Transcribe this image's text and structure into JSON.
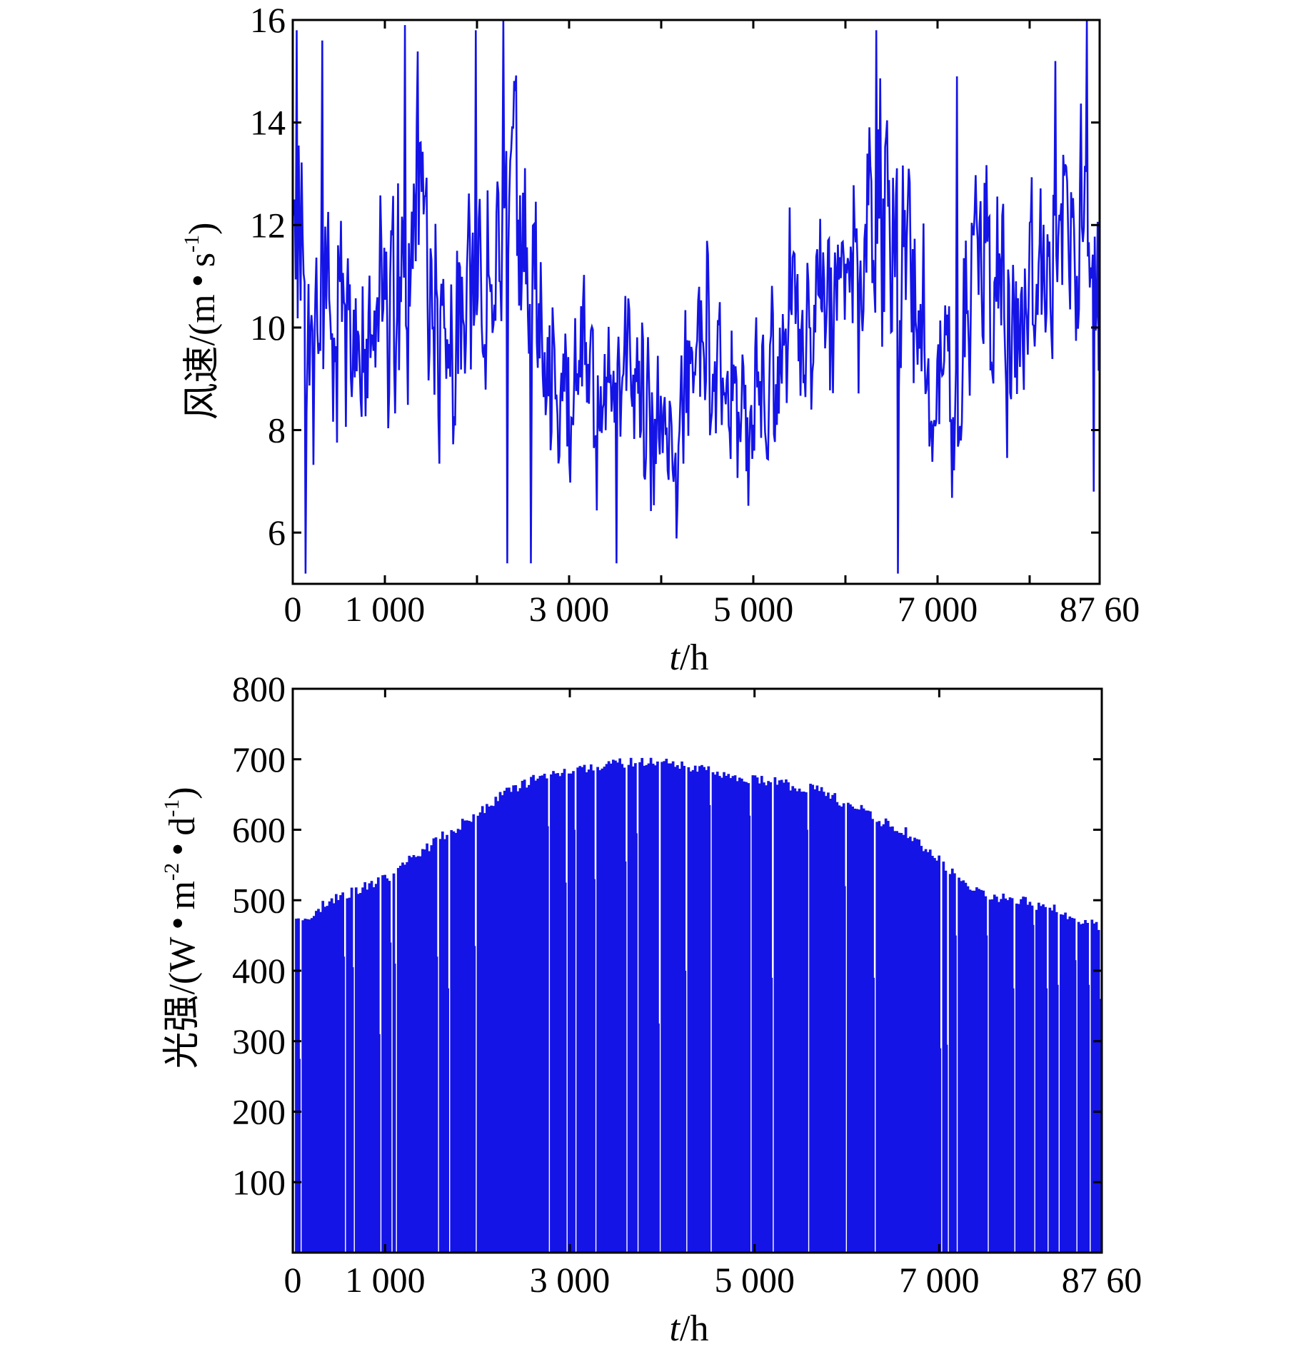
{
  "chart_data": [
    {
      "type": "line",
      "ylabel": "风速/(m·s⁻¹)",
      "ylabel_parts": {
        "quantity": "风速/(m",
        "dot": "•",
        "unit": "s",
        "exp": "-1",
        "close": ")"
      },
      "xlabel": "t/h",
      "xlabel_parts": {
        "var": "t",
        "rest": "/h"
      },
      "xlim": [
        0,
        8760
      ],
      "ylim": [
        5,
        16
      ],
      "xticks": [
        {
          "value": 0,
          "label": "0"
        },
        {
          "value": 1000,
          "label": "1 000"
        },
        {
          "value": 3000,
          "label": "3 000"
        },
        {
          "value": 5000,
          "label": "5 000"
        },
        {
          "value": 7000,
          "label": "7 000"
        },
        {
          "value": 8760,
          "label": "87 60"
        }
      ],
      "xminor": [
        2000,
        4000,
        6000,
        8000
      ],
      "yticks": [
        {
          "value": 6,
          "label": "6"
        },
        {
          "value": 8,
          "label": "8"
        },
        {
          "value": 10,
          "label": "10"
        },
        {
          "value": 12,
          "label": "12"
        },
        {
          "value": 14,
          "label": "14"
        },
        {
          "value": 16,
          "label": "16"
        }
      ],
      "grid": false,
      "color": "#1414e6",
      "series": [
        {
          "x": [
            0,
            200,
            400,
            600,
            800,
            1000,
            1200,
            1400,
            1600,
            1800,
            2000,
            2200,
            2400,
            2600,
            2800,
            3000,
            3200,
            3400,
            3600,
            3800,
            4000,
            4200,
            4400,
            4600,
            4800,
            5000,
            5200,
            5400,
            5600,
            5800,
            6000,
            6200,
            6400,
            6600,
            6800,
            7000,
            7200,
            7400,
            7600,
            7800,
            8000,
            8200,
            8400,
            8600,
            8760
          ],
          "y": [
            12.0,
            9.2,
            10.3,
            10.1,
            9.4,
            10.8,
            11.2,
            12.8,
            10.1,
            9.7,
            11.2,
            10.4,
            13.6,
            10.5,
            8.6,
            8.3,
            8.8,
            8.4,
            8.6,
            8.7,
            8.4,
            8.0,
            10.0,
            9.6,
            8.6,
            8.3,
            8.8,
            10.4,
            9.1,
            10.6,
            10.8,
            10.6,
            12.3,
            11.6,
            10.2,
            8.6,
            8.2,
            11.7,
            10.3,
            10.0,
            10.2,
            10.8,
            11.6,
            12.8,
            9.3
          ],
          "band": [
            3.5,
            2.2,
            2.3,
            2.6,
            2.3,
            2.6,
            2.6,
            2.4,
            2.3,
            2.3,
            2.5,
            2.2,
            2.4,
            2.3,
            2.0,
            1.9,
            1.9,
            1.9,
            1.9,
            2.0,
            2.0,
            2.0,
            2.1,
            2.1,
            2.0,
            2.0,
            2.0,
            2.2,
            2.1,
            2.2,
            2.3,
            2.3,
            2.7,
            2.4,
            2.3,
            2.0,
            2.0,
            2.3,
            2.2,
            2.2,
            2.2,
            2.3,
            2.3,
            2.4,
            2.5
          ]
        }
      ],
      "spikes": [
        {
          "x": 40,
          "y": 15.8
        },
        {
          "x": 140,
          "y": 5.2
        },
        {
          "x": 320,
          "y": 15.6
        },
        {
          "x": 1220,
          "y": 15.9
        },
        {
          "x": 1990,
          "y": 15.8
        },
        {
          "x": 2290,
          "y": 16.0
        },
        {
          "x": 2330,
          "y": 5.4
        },
        {
          "x": 2590,
          "y": 5.4
        },
        {
          "x": 3520,
          "y": 5.4
        },
        {
          "x": 6330,
          "y": 15.8
        },
        {
          "x": 6570,
          "y": 5.2
        },
        {
          "x": 7210,
          "y": 14.9
        },
        {
          "x": 8280,
          "y": 15.2
        },
        {
          "x": 8620,
          "y": 16.0
        },
        {
          "x": 8700,
          "y": 6.8
        }
      ]
    },
    {
      "type": "bar",
      "ylabel": "光强/(W·m⁻²·d⁻¹)",
      "ylabel_parts": {
        "quantity": "光强/(W",
        "dot": "•",
        "unit1": "m",
        "exp1": "-2",
        "unit2": "d",
        "exp2": "-1",
        "close": ")"
      },
      "xlabel": "t/h",
      "xlabel_parts": {
        "var": "t",
        "rest": "/h"
      },
      "xlim": [
        0,
        8760
      ],
      "ylim": [
        0,
        800
      ],
      "xticks": [
        {
          "value": 0,
          "label": "0"
        },
        {
          "value": 1000,
          "label": "1 000"
        },
        {
          "value": 3000,
          "label": "3 000"
        },
        {
          "value": 5000,
          "label": "5 000"
        },
        {
          "value": 7000,
          "label": "7 000"
        },
        {
          "value": 8760,
          "label": "87 60"
        }
      ],
      "yticks": [
        {
          "value": 100,
          "label": "100"
        },
        {
          "value": 200,
          "label": "200"
        },
        {
          "value": 300,
          "label": "300"
        },
        {
          "value": 400,
          "label": "400"
        },
        {
          "value": 500,
          "label": "500"
        },
        {
          "value": 600,
          "label": "600"
        },
        {
          "value": 700,
          "label": "700"
        },
        {
          "value": 800,
          "label": "800"
        }
      ],
      "grid": false,
      "color": "#1414e6",
      "series": [
        {
          "x": [
            0,
            200,
            400,
            600,
            800,
            1000,
            1200,
            1400,
            1600,
            1800,
            2000,
            2200,
            2400,
            2600,
            2800,
            3000,
            3200,
            3400,
            3600,
            3800,
            4000,
            4200,
            4400,
            4600,
            4800,
            5000,
            5200,
            5400,
            5600,
            5800,
            6000,
            6200,
            6400,
            6600,
            6800,
            7000,
            7200,
            7400,
            7600,
            7800,
            8000,
            8200,
            8400,
            8600,
            8760
          ],
          "y": [
            470,
            480,
            500,
            510,
            520,
            530,
            550,
            570,
            590,
            605,
            620,
            645,
            660,
            670,
            675,
            685,
            690,
            692,
            694,
            695,
            694,
            690,
            685,
            680,
            675,
            670,
            668,
            662,
            658,
            650,
            635,
            625,
            610,
            600,
            580,
            555,
            530,
            515,
            505,
            500,
            495,
            488,
            480,
            470,
            460
          ]
        }
      ],
      "dips": [
        {
          "x": 20,
          "y": 400
        },
        {
          "x": 90,
          "y": 275
        },
        {
          "x": 560,
          "y": 420
        },
        {
          "x": 650,
          "y": 405
        },
        {
          "x": 940,
          "y": 310
        },
        {
          "x": 1060,
          "y": 440
        },
        {
          "x": 1120,
          "y": 410
        },
        {
          "x": 1560,
          "y": 420
        },
        {
          "x": 1690,
          "y": 375
        },
        {
          "x": 1990,
          "y": 435
        },
        {
          "x": 2760,
          "y": 605
        },
        {
          "x": 2960,
          "y": 525
        },
        {
          "x": 3050,
          "y": 600
        },
        {
          "x": 3270,
          "y": 530
        },
        {
          "x": 3620,
          "y": 555
        },
        {
          "x": 3740,
          "y": 595
        },
        {
          "x": 3960,
          "y": 325
        },
        {
          "x": 4250,
          "y": 400
        },
        {
          "x": 4520,
          "y": 635
        },
        {
          "x": 4950,
          "y": 620
        },
        {
          "x": 5200,
          "y": 390
        },
        {
          "x": 5580,
          "y": 600
        },
        {
          "x": 5990,
          "y": 520
        },
        {
          "x": 6300,
          "y": 390
        },
        {
          "x": 7020,
          "y": 290
        },
        {
          "x": 7100,
          "y": 295
        },
        {
          "x": 7190,
          "y": 450
        },
        {
          "x": 7520,
          "y": 450
        },
        {
          "x": 7800,
          "y": 375
        },
        {
          "x": 8020,
          "y": 465
        },
        {
          "x": 8160,
          "y": 375
        },
        {
          "x": 8290,
          "y": 380
        },
        {
          "x": 8480,
          "y": 415
        },
        {
          "x": 8620,
          "y": 380
        },
        {
          "x": 8750,
          "y": 360
        }
      ]
    }
  ]
}
